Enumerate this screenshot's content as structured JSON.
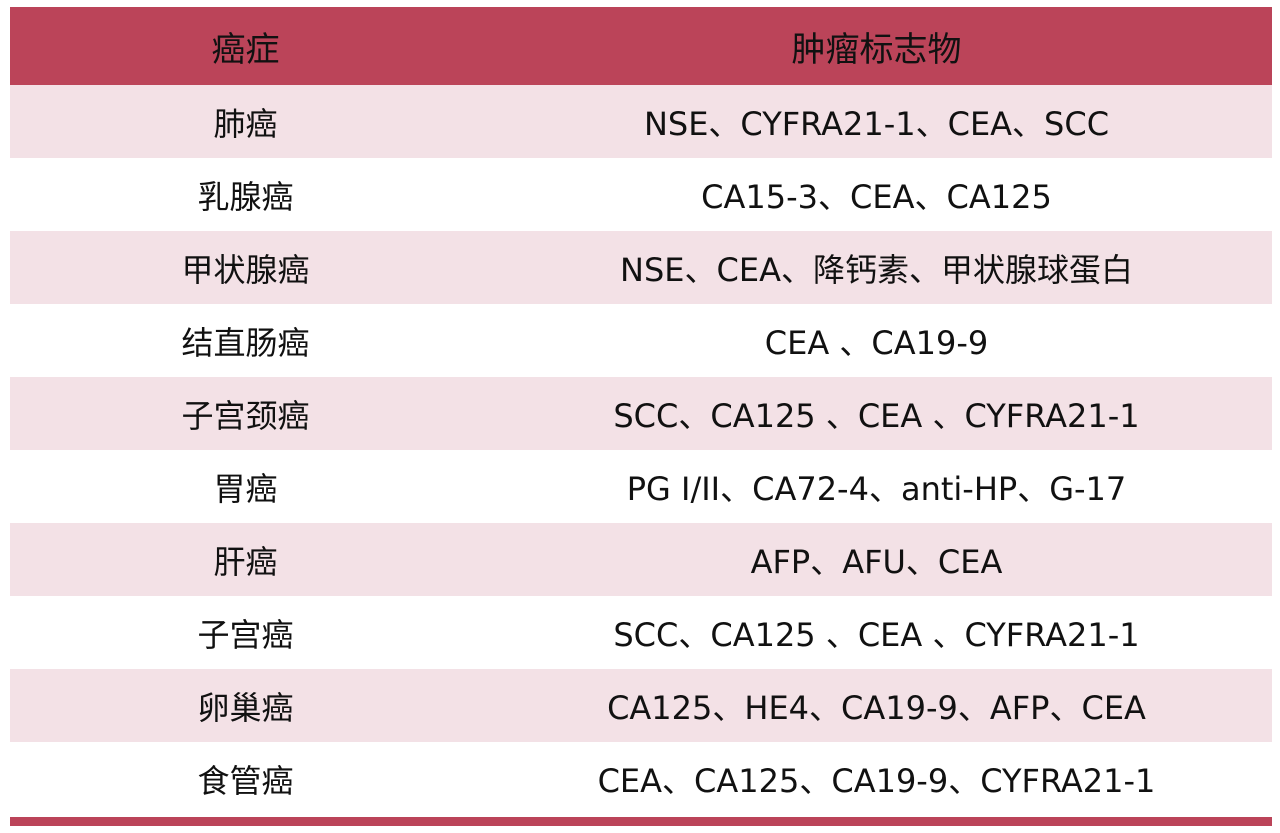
{
  "table": {
    "headers": [
      "癌症",
      "肿瘤标志物"
    ],
    "rows": [
      {
        "cancer": "肺癌",
        "markers": "NSE、CYFRA21-1、CEA、SCC"
      },
      {
        "cancer": "乳腺癌",
        "markers": "CA15-3、CEA、CA125"
      },
      {
        "cancer": "甲状腺癌",
        "markers": "NSE、CEA、降钙素、甲状腺球蛋白"
      },
      {
        "cancer": "结直肠癌",
        "markers": "CEA 、CA19-9"
      },
      {
        "cancer": "子宫颈癌",
        "markers": "SCC、CA125 、CEA 、CYFRA21-1"
      },
      {
        "cancer": "胃癌",
        "markers": "PG I/II、CA72-4、anti-HP、G-17"
      },
      {
        "cancer": "肝癌",
        "markers": "AFP、AFU、CEA"
      },
      {
        "cancer": "子宫癌",
        "markers": "SCC、CA125 、CEA 、CYFRA21-1"
      },
      {
        "cancer": "卵巢癌",
        "markers": "CA125、HE4、CA19-9、AFP、CEA"
      },
      {
        "cancer": "食管癌",
        "markers": "CEA、CA125、CA19-9、CYFRA21-1"
      }
    ]
  },
  "colors": {
    "header": "#bb4459",
    "alt_row": "#f3e1e6",
    "row": "#ffffff"
  }
}
